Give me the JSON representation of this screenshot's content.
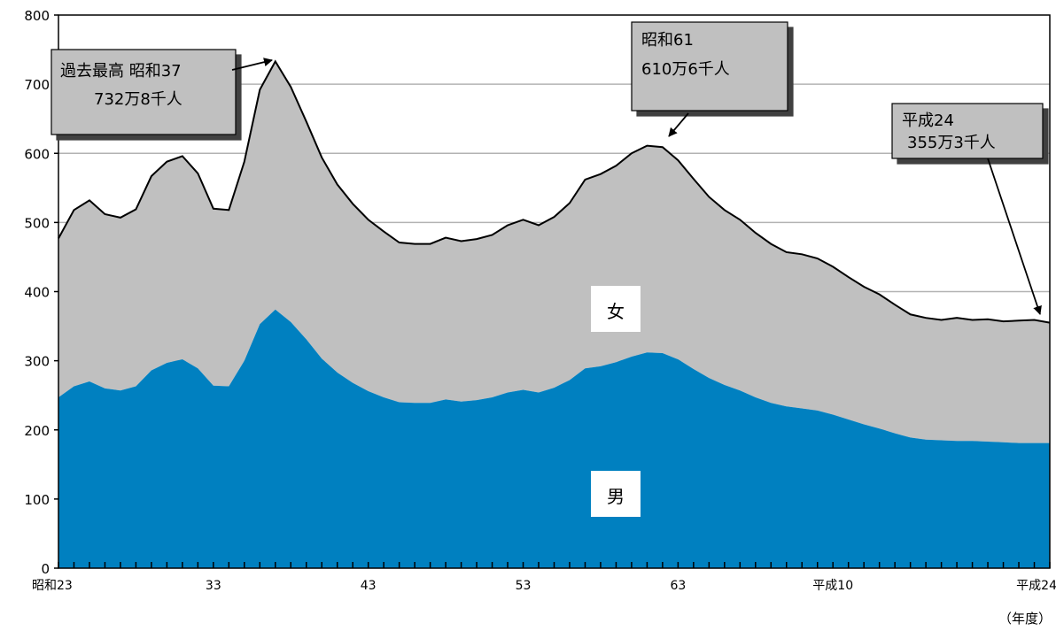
{
  "chart_data": {
    "type": "area",
    "stacked": true,
    "xlabel": "（年度）",
    "ylabel": "",
    "ylim": [
      0,
      800
    ],
    "y_ticks": [
      0,
      100,
      200,
      300,
      400,
      500,
      600,
      700,
      800
    ],
    "gridlines": true,
    "x_tick_labels": [
      {
        "index": 0,
        "label": "昭和23"
      },
      {
        "index": 10,
        "label": "33"
      },
      {
        "index": 20,
        "label": "43"
      },
      {
        "index": 30,
        "label": "53"
      },
      {
        "index": 40,
        "label": "63"
      },
      {
        "index": 50,
        "label": "平成10"
      },
      {
        "index": 64,
        "label": "平成24"
      }
    ],
    "x_count": 65,
    "series": [
      {
        "name": "男",
        "color": "#0080c0",
        "values": [
          247,
          263,
          270,
          260,
          257,
          263,
          286,
          297,
          302,
          289,
          264,
          263,
          300,
          353,
          374,
          356,
          331,
          303,
          283,
          268,
          256,
          247,
          240,
          239,
          239,
          244,
          241,
          243,
          247,
          254,
          258,
          254,
          261,
          272,
          289,
          292,
          298,
          306,
          312,
          311,
          302,
          288,
          275,
          265,
          257,
          247,
          239,
          234,
          231,
          228,
          222,
          215,
          208,
          202,
          195,
          189,
          186,
          185,
          184,
          184,
          183,
          182,
          181,
          181,
          181
        ]
      },
      {
        "name": "女",
        "color": "#c0c0c0",
        "values": [
          230,
          255,
          262,
          252,
          250,
          256,
          281,
          291,
          294,
          282,
          256,
          255,
          288,
          339,
          359,
          340,
          315,
          291,
          272,
          259,
          248,
          240,
          231,
          230,
          230,
          234,
          232,
          233,
          235,
          242,
          246,
          242,
          247,
          256,
          273,
          278,
          284,
          294,
          299,
          298,
          288,
          275,
          262,
          253,
          247,
          238,
          230,
          223,
          223,
          220,
          214,
          206,
          199,
          194,
          186,
          178,
          176,
          174,
          178,
          175,
          177,
          175,
          177,
          178,
          174
        ]
      }
    ],
    "totals": [
      477,
      518,
      532,
      512,
      507,
      519,
      567,
      588,
      596,
      571,
      520,
      518,
      588,
      692,
      733,
      696,
      646,
      594,
      555,
      527,
      504,
      487,
      471,
      469,
      469,
      478,
      473,
      476,
      482,
      496,
      504,
      496,
      508,
      528,
      562,
      570,
      582,
      600,
      611,
      609,
      590,
      563,
      537,
      518,
      504,
      485,
      469,
      457,
      454,
      448,
      436,
      421,
      407,
      396,
      381,
      367,
      362,
      359,
      362,
      359,
      360,
      357,
      358,
      359,
      355
    ],
    "annotations": [
      {
        "line1": "過去最高  昭和37",
        "line2": "732万8千人"
      },
      {
        "line1": "昭和61",
        "line2": "610万6千人"
      },
      {
        "line1": "平成24",
        "line2": "355万3千人"
      }
    ]
  }
}
